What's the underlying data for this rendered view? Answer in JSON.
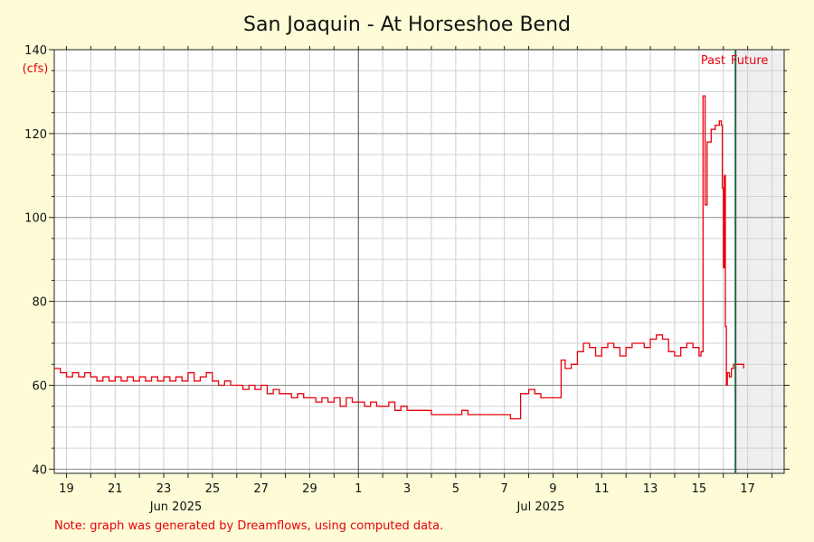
{
  "chart_data": {
    "type": "line",
    "title": "San Joaquin - At Horseshoe Bend",
    "ylabel": "(cfs)",
    "ylim": [
      39,
      140
    ],
    "y_ticks": [
      40,
      60,
      80,
      100,
      120,
      140
    ],
    "x_start": "2025-06-18",
    "xlim": [
      "2025-06-18 12:00",
      "2025-07-18 12:00"
    ],
    "x_day_labels": [
      {
        "date": "2025-06-19",
        "label": "19"
      },
      {
        "date": "2025-06-21",
        "label": "21"
      },
      {
        "date": "2025-06-23",
        "label": "23"
      },
      {
        "date": "2025-06-25",
        "label": "25"
      },
      {
        "date": "2025-06-27",
        "label": "27"
      },
      {
        "date": "2025-06-29",
        "label": "29"
      },
      {
        "date": "2025-07-01",
        "label": "1"
      },
      {
        "date": "2025-07-03",
        "label": "3"
      },
      {
        "date": "2025-07-05",
        "label": "5"
      },
      {
        "date": "2025-07-07",
        "label": "7"
      },
      {
        "date": "2025-07-09",
        "label": "9"
      },
      {
        "date": "2025-07-11",
        "label": "11"
      },
      {
        "date": "2025-07-13",
        "label": "13"
      },
      {
        "date": "2025-07-15",
        "label": "15"
      },
      {
        "date": "2025-07-17",
        "label": "17"
      }
    ],
    "month_labels": [
      {
        "date": "2025-06-23 12:00",
        "label": "Jun 2025"
      },
      {
        "date": "2025-07-08 12:00",
        "label": "Jul 2025"
      }
    ],
    "month_divider": "2025-07-01",
    "now": "2025-07-16 12:00",
    "past_label": "Past",
    "future_label": "Future",
    "grid": true,
    "series": [
      {
        "color": "#e8000b",
        "points": [
          [
            "2025-06-18 12:00",
            64
          ],
          [
            "2025-06-18 18:00",
            63
          ],
          [
            "2025-06-19 00:00",
            62
          ],
          [
            "2025-06-19 06:00",
            63
          ],
          [
            "2025-06-19 12:00",
            62
          ],
          [
            "2025-06-19 18:00",
            63
          ],
          [
            "2025-06-20 00:00",
            62
          ],
          [
            "2025-06-20 06:00",
            61
          ],
          [
            "2025-06-20 12:00",
            62
          ],
          [
            "2025-06-20 18:00",
            61
          ],
          [
            "2025-06-21 00:00",
            62
          ],
          [
            "2025-06-21 06:00",
            61
          ],
          [
            "2025-06-21 12:00",
            62
          ],
          [
            "2025-06-21 18:00",
            61
          ],
          [
            "2025-06-22 00:00",
            62
          ],
          [
            "2025-06-22 06:00",
            61
          ],
          [
            "2025-06-22 12:00",
            62
          ],
          [
            "2025-06-22 18:00",
            61
          ],
          [
            "2025-06-23 00:00",
            62
          ],
          [
            "2025-06-23 06:00",
            61
          ],
          [
            "2025-06-23 12:00",
            62
          ],
          [
            "2025-06-23 18:00",
            61
          ],
          [
            "2025-06-24 00:00",
            63
          ],
          [
            "2025-06-24 06:00",
            61
          ],
          [
            "2025-06-24 12:00",
            62
          ],
          [
            "2025-06-24 18:00",
            63
          ],
          [
            "2025-06-25 00:00",
            61
          ],
          [
            "2025-06-25 06:00",
            60
          ],
          [
            "2025-06-25 12:00",
            61
          ],
          [
            "2025-06-25 18:00",
            60
          ],
          [
            "2025-06-26 00:00",
            60
          ],
          [
            "2025-06-26 06:00",
            59
          ],
          [
            "2025-06-26 12:00",
            60
          ],
          [
            "2025-06-26 18:00",
            59
          ],
          [
            "2025-06-27 00:00",
            60
          ],
          [
            "2025-06-27 06:00",
            58
          ],
          [
            "2025-06-27 12:00",
            59
          ],
          [
            "2025-06-27 18:00",
            58
          ],
          [
            "2025-06-28 00:00",
            58
          ],
          [
            "2025-06-28 06:00",
            57
          ],
          [
            "2025-06-28 12:00",
            58
          ],
          [
            "2025-06-28 18:00",
            57
          ],
          [
            "2025-06-29 00:00",
            57
          ],
          [
            "2025-06-29 06:00",
            56
          ],
          [
            "2025-06-29 12:00",
            57
          ],
          [
            "2025-06-29 18:00",
            56
          ],
          [
            "2025-06-30 00:00",
            57
          ],
          [
            "2025-06-30 06:00",
            55
          ],
          [
            "2025-06-30 12:00",
            57
          ],
          [
            "2025-06-30 18:00",
            56
          ],
          [
            "2025-07-01 00:00",
            56
          ],
          [
            "2025-07-01 06:00",
            55
          ],
          [
            "2025-07-01 12:00",
            56
          ],
          [
            "2025-07-01 18:00",
            55
          ],
          [
            "2025-07-02 00:00",
            55
          ],
          [
            "2025-07-02 06:00",
            56
          ],
          [
            "2025-07-02 12:00",
            54
          ],
          [
            "2025-07-02 18:00",
            55
          ],
          [
            "2025-07-03 00:00",
            54
          ],
          [
            "2025-07-03 12:00",
            54
          ],
          [
            "2025-07-04 00:00",
            53
          ],
          [
            "2025-07-05 00:00",
            53
          ],
          [
            "2025-07-05 06:00",
            54
          ],
          [
            "2025-07-05 12:00",
            53
          ],
          [
            "2025-07-06 12:00",
            53
          ],
          [
            "2025-07-07 00:00",
            53
          ],
          [
            "2025-07-07 06:00",
            52
          ],
          [
            "2025-07-07 12:00",
            52
          ],
          [
            "2025-07-07 16:00",
            58
          ],
          [
            "2025-07-08 00:00",
            59
          ],
          [
            "2025-07-08 06:00",
            58
          ],
          [
            "2025-07-08 12:00",
            57
          ],
          [
            "2025-07-09 00:00",
            57
          ],
          [
            "2025-07-09 06:00",
            57
          ],
          [
            "2025-07-09 08:00",
            66
          ],
          [
            "2025-07-09 12:00",
            64
          ],
          [
            "2025-07-09 18:00",
            65
          ],
          [
            "2025-07-10 00:00",
            68
          ],
          [
            "2025-07-10 06:00",
            70
          ],
          [
            "2025-07-10 12:00",
            69
          ],
          [
            "2025-07-10 18:00",
            67
          ],
          [
            "2025-07-11 00:00",
            69
          ],
          [
            "2025-07-11 06:00",
            70
          ],
          [
            "2025-07-11 12:00",
            69
          ],
          [
            "2025-07-11 18:00",
            67
          ],
          [
            "2025-07-12 00:00",
            69
          ],
          [
            "2025-07-12 06:00",
            70
          ],
          [
            "2025-07-12 12:00",
            70
          ],
          [
            "2025-07-12 18:00",
            69
          ],
          [
            "2025-07-13 00:00",
            71
          ],
          [
            "2025-07-13 06:00",
            72
          ],
          [
            "2025-07-13 12:00",
            71
          ],
          [
            "2025-07-13 18:00",
            68
          ],
          [
            "2025-07-14 00:00",
            67
          ],
          [
            "2025-07-14 06:00",
            69
          ],
          [
            "2025-07-14 12:00",
            70
          ],
          [
            "2025-07-14 18:00",
            69
          ],
          [
            "2025-07-15 00:00",
            67
          ],
          [
            "2025-07-15 02:00",
            68
          ],
          [
            "2025-07-15 04:00",
            129
          ],
          [
            "2025-07-15 06:00",
            103
          ],
          [
            "2025-07-15 08:00",
            118
          ],
          [
            "2025-07-15 12:00",
            121
          ],
          [
            "2025-07-15 16:00",
            122
          ],
          [
            "2025-07-15 20:00",
            123
          ],
          [
            "2025-07-15 22:00",
            122
          ],
          [
            "2025-07-15 23:00",
            107
          ],
          [
            "2025-07-16 00:00",
            88
          ],
          [
            "2025-07-16 01:00",
            110
          ],
          [
            "2025-07-16 02:00",
            74
          ],
          [
            "2025-07-16 03:00",
            60
          ],
          [
            "2025-07-16 04:00",
            63
          ],
          [
            "2025-07-16 06:00",
            62
          ],
          [
            "2025-07-16 08:00",
            64
          ],
          [
            "2025-07-16 10:00",
            65
          ],
          [
            "2025-07-16 12:00",
            65
          ],
          [
            "2025-07-16 20:00",
            64
          ]
        ]
      }
    ]
  },
  "note": "Note: graph was generated by Dreamflows, using computed data."
}
